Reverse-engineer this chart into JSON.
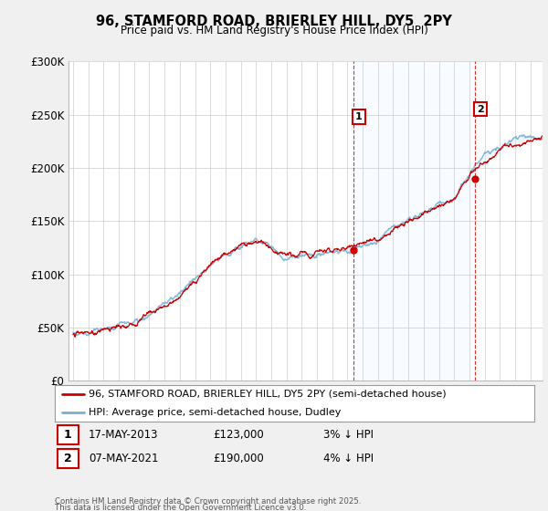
{
  "title": "96, STAMFORD ROAD, BRIERLEY HILL, DY5  2PY",
  "subtitle": "Price paid vs. HM Land Registry's House Price Index (HPI)",
  "ylabel_ticks": [
    "£0",
    "£50K",
    "£100K",
    "£150K",
    "£200K",
    "£250K",
    "£300K"
  ],
  "ylim": [
    0,
    300000
  ],
  "xlim_start": 1994.7,
  "xlim_end": 2025.8,
  "sale1_year": 2013.37,
  "sale1_price": 123000,
  "sale2_year": 2021.35,
  "sale2_price": 190000,
  "legend_line1": "96, STAMFORD ROAD, BRIERLEY HILL, DY5 2PY (semi-detached house)",
  "legend_line2": "HPI: Average price, semi-detached house, Dudley",
  "footnote1": "Contains HM Land Registry data © Crown copyright and database right 2025.",
  "footnote2": "This data is licensed under the Open Government Licence v3.0.",
  "line_color_red": "#cc0000",
  "line_color_blue": "#7ab0d4",
  "fill_color": "#d0e8f5",
  "bg_color": "#f0f0f0",
  "plot_bg": "#ffffff",
  "grid_color": "#cccccc",
  "annotation_box_color": "#cc0000",
  "sale1_date": "17-MAY-2013",
  "sale1_note": "3% ↓ HPI",
  "sale1_price_str": "£123,000",
  "sale2_date": "07-MAY-2021",
  "sale2_note": "4% ↓ HPI",
  "sale2_price_str": "£190,000"
}
